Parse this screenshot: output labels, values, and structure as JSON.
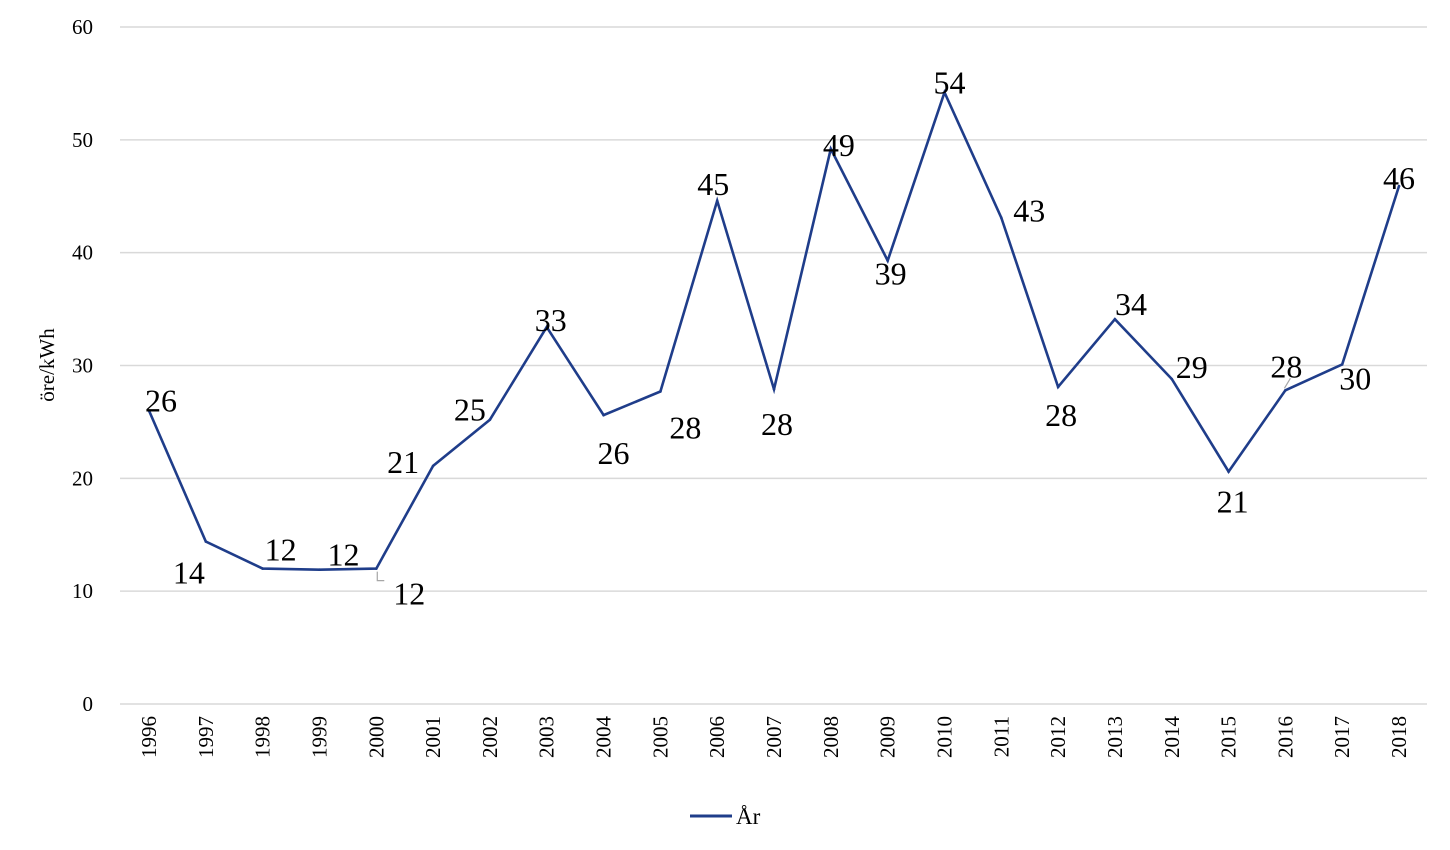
{
  "chart_data": {
    "type": "line",
    "title": "",
    "xlabel": "",
    "ylabel": "öre/kWh",
    "ylim": [
      0,
      60
    ],
    "yticks": [
      0,
      10,
      20,
      30,
      40,
      50,
      60
    ],
    "grid": true,
    "legend_position": "bottom",
    "categories": [
      "1996",
      "1997",
      "1998",
      "1999",
      "2000",
      "2001",
      "2002",
      "2003",
      "2004",
      "2005",
      "2006",
      "2007",
      "2008",
      "2009",
      "2010",
      "2011",
      "2012",
      "2013",
      "2014",
      "2015",
      "2016",
      "2017",
      "2018"
    ],
    "series": [
      {
        "name": "År",
        "color": "#1f3d8a",
        "values": [
          26.0,
          14.4,
          12.0,
          11.9,
          12.0,
          21.1,
          25.2,
          33.4,
          25.6,
          27.7,
          44.6,
          27.9,
          49.2,
          39.3,
          54.2,
          43.1,
          28.1,
          34.1,
          28.8,
          20.6,
          27.8,
          30.1,
          45.9
        ],
        "data_labels": [
          "26",
          "14",
          "12",
          "12",
          "12",
          "21",
          "25",
          "33",
          "26",
          "28",
          "45",
          "28",
          "49",
          "39",
          "54",
          "43",
          "28",
          "34",
          "29",
          "21",
          "28",
          "30",
          "46"
        ]
      }
    ]
  }
}
